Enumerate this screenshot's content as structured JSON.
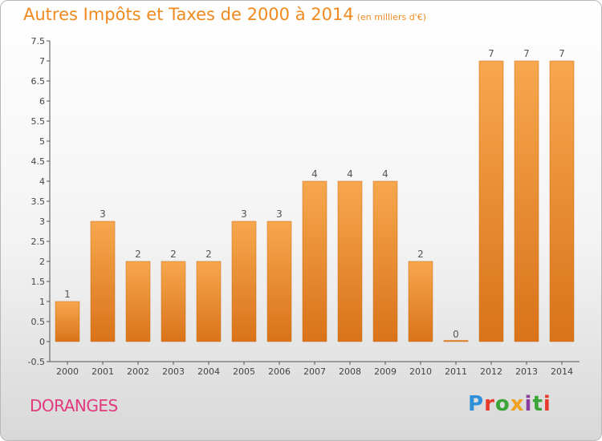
{
  "header": {
    "title": "Autres Impôts et Taxes de 2000 à 2014",
    "subtitle": "(en milliers d'€)"
  },
  "footer": {
    "place": "DORANGES",
    "logo_text": "Proxiti"
  },
  "colors": {
    "bar_light": "#f7a74e",
    "bar_dark": "#d9731a",
    "title": "#f08a1e",
    "place": "#e2387e"
  },
  "chart_data": {
    "type": "bar",
    "title": "Autres Impôts et Taxes de 2000 à 2014",
    "subtitle": "(en milliers d'€)",
    "categories": [
      "2000",
      "2001",
      "2002",
      "2003",
      "2004",
      "2005",
      "2006",
      "2007",
      "2008",
      "2009",
      "2010",
      "2011",
      "2012",
      "2013",
      "2014"
    ],
    "values": [
      1,
      3,
      2,
      2,
      2,
      3,
      3,
      4,
      4,
      4,
      2,
      0,
      7,
      7,
      7
    ],
    "data_labels": [
      "1",
      "3",
      "2",
      "2",
      "2",
      "3",
      "3",
      "4",
      "4",
      "4",
      "2",
      "0",
      "7",
      "7",
      "7"
    ],
    "y_ticks": [
      "-0.5",
      "0",
      "0.5",
      "1",
      "1.5",
      "2",
      "2.5",
      "3",
      "3.5",
      "4",
      "4.5",
      "5",
      "5.5",
      "6",
      "6.5",
      "7",
      "7.5"
    ],
    "ylim": [
      -0.5,
      7.5
    ],
    "grid": false,
    "legend": "none"
  }
}
